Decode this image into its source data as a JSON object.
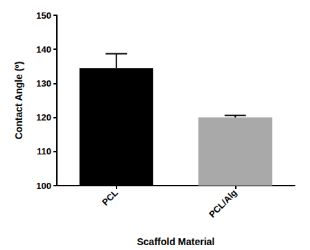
{
  "chart_data": {
    "type": "bar",
    "x_label": "Scaffold Material",
    "y_label": "Contact Angle (º)",
    "categories": [
      "PCL",
      "PCL/Alg"
    ],
    "values": [
      134.5,
      120
    ],
    "errors": [
      4.2,
      0.6
    ],
    "colors": [
      "#000000",
      "#a9a9a9"
    ],
    "ylim": [
      100,
      150
    ],
    "yticks": [
      100,
      110,
      120,
      130,
      140,
      150
    ],
    "grid": false
  }
}
